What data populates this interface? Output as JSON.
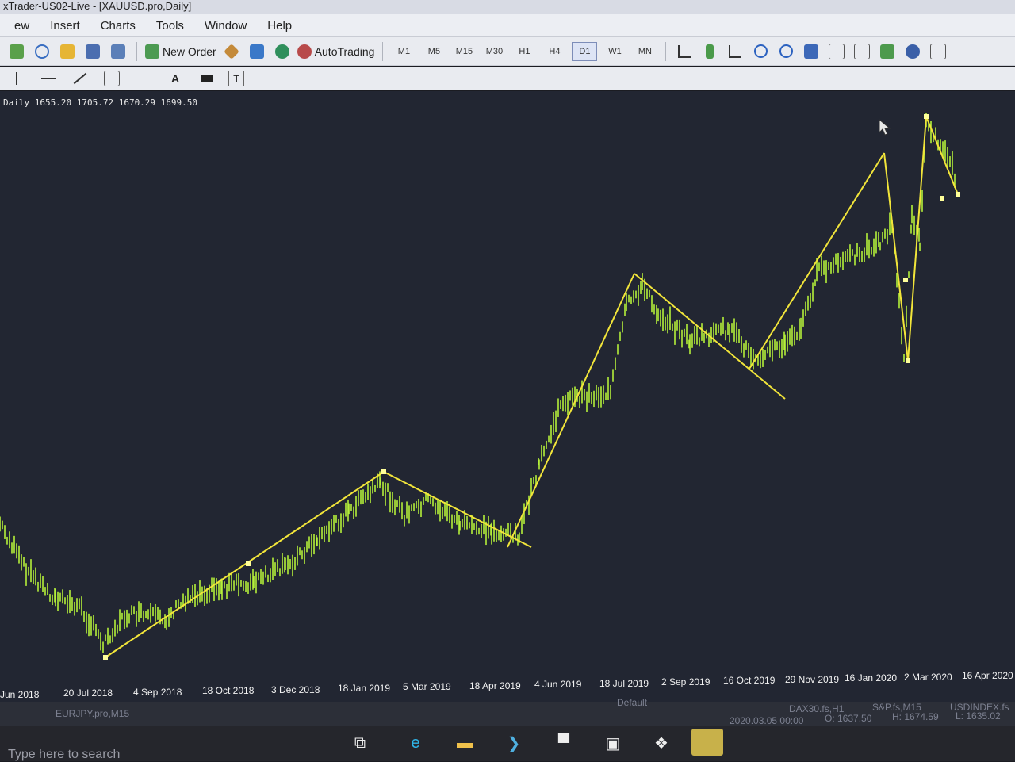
{
  "window": {
    "title": "xTrader-US02-Live - [XAUUSD.pro,Daily]"
  },
  "menu": [
    "ew",
    "Insert",
    "Charts",
    "Tools",
    "Window",
    "Help"
  ],
  "toolbar": {
    "new_order": "New Order",
    "auto_trading": "AutoTrading",
    "timeframes": [
      "M1",
      "M5",
      "M15",
      "M30",
      "H1",
      "H4",
      "D1",
      "W1",
      "MN"
    ],
    "active_timeframe": "D1"
  },
  "drawing_tools": [
    "A",
    "T"
  ],
  "chart": {
    "ohlc_header": "Daily  1655.20 1705.72 1670.29 1699.50",
    "price_color": "#b5f03a",
    "trendline_color": "#f2e53a",
    "background": "#222632",
    "date_labels": [
      "Jun 2018",
      "20 Jul 2018",
      "4 Sep 2018",
      "18 Oct 2018",
      "3 Dec 2018",
      "18 Jan 2019",
      "5 Mar 2019",
      "18 Apr 2019",
      "4 Jun 2019",
      "18 Jul 2019",
      "2 Sep 2019",
      "16 Oct 2019",
      "29 Nov 2019",
      "16 Jan 2020",
      "2 Mar 2020",
      "16 Apr 2020"
    ]
  },
  "tabs": {
    "row1": [
      "DAX30.fs,H1",
      "S&P.fs,M15",
      "USDINDEX.fs"
    ],
    "row2": [
      "EURJPY.pro,M15"
    ],
    "status": {
      "time": "2020.03.05 00:00",
      "open": "O: 1637.50",
      "high": "H: 1674.59",
      "low": "L: 1635.02",
      "profile": "Default"
    }
  },
  "taskbar": {
    "search_hint": "Type here to search"
  }
}
